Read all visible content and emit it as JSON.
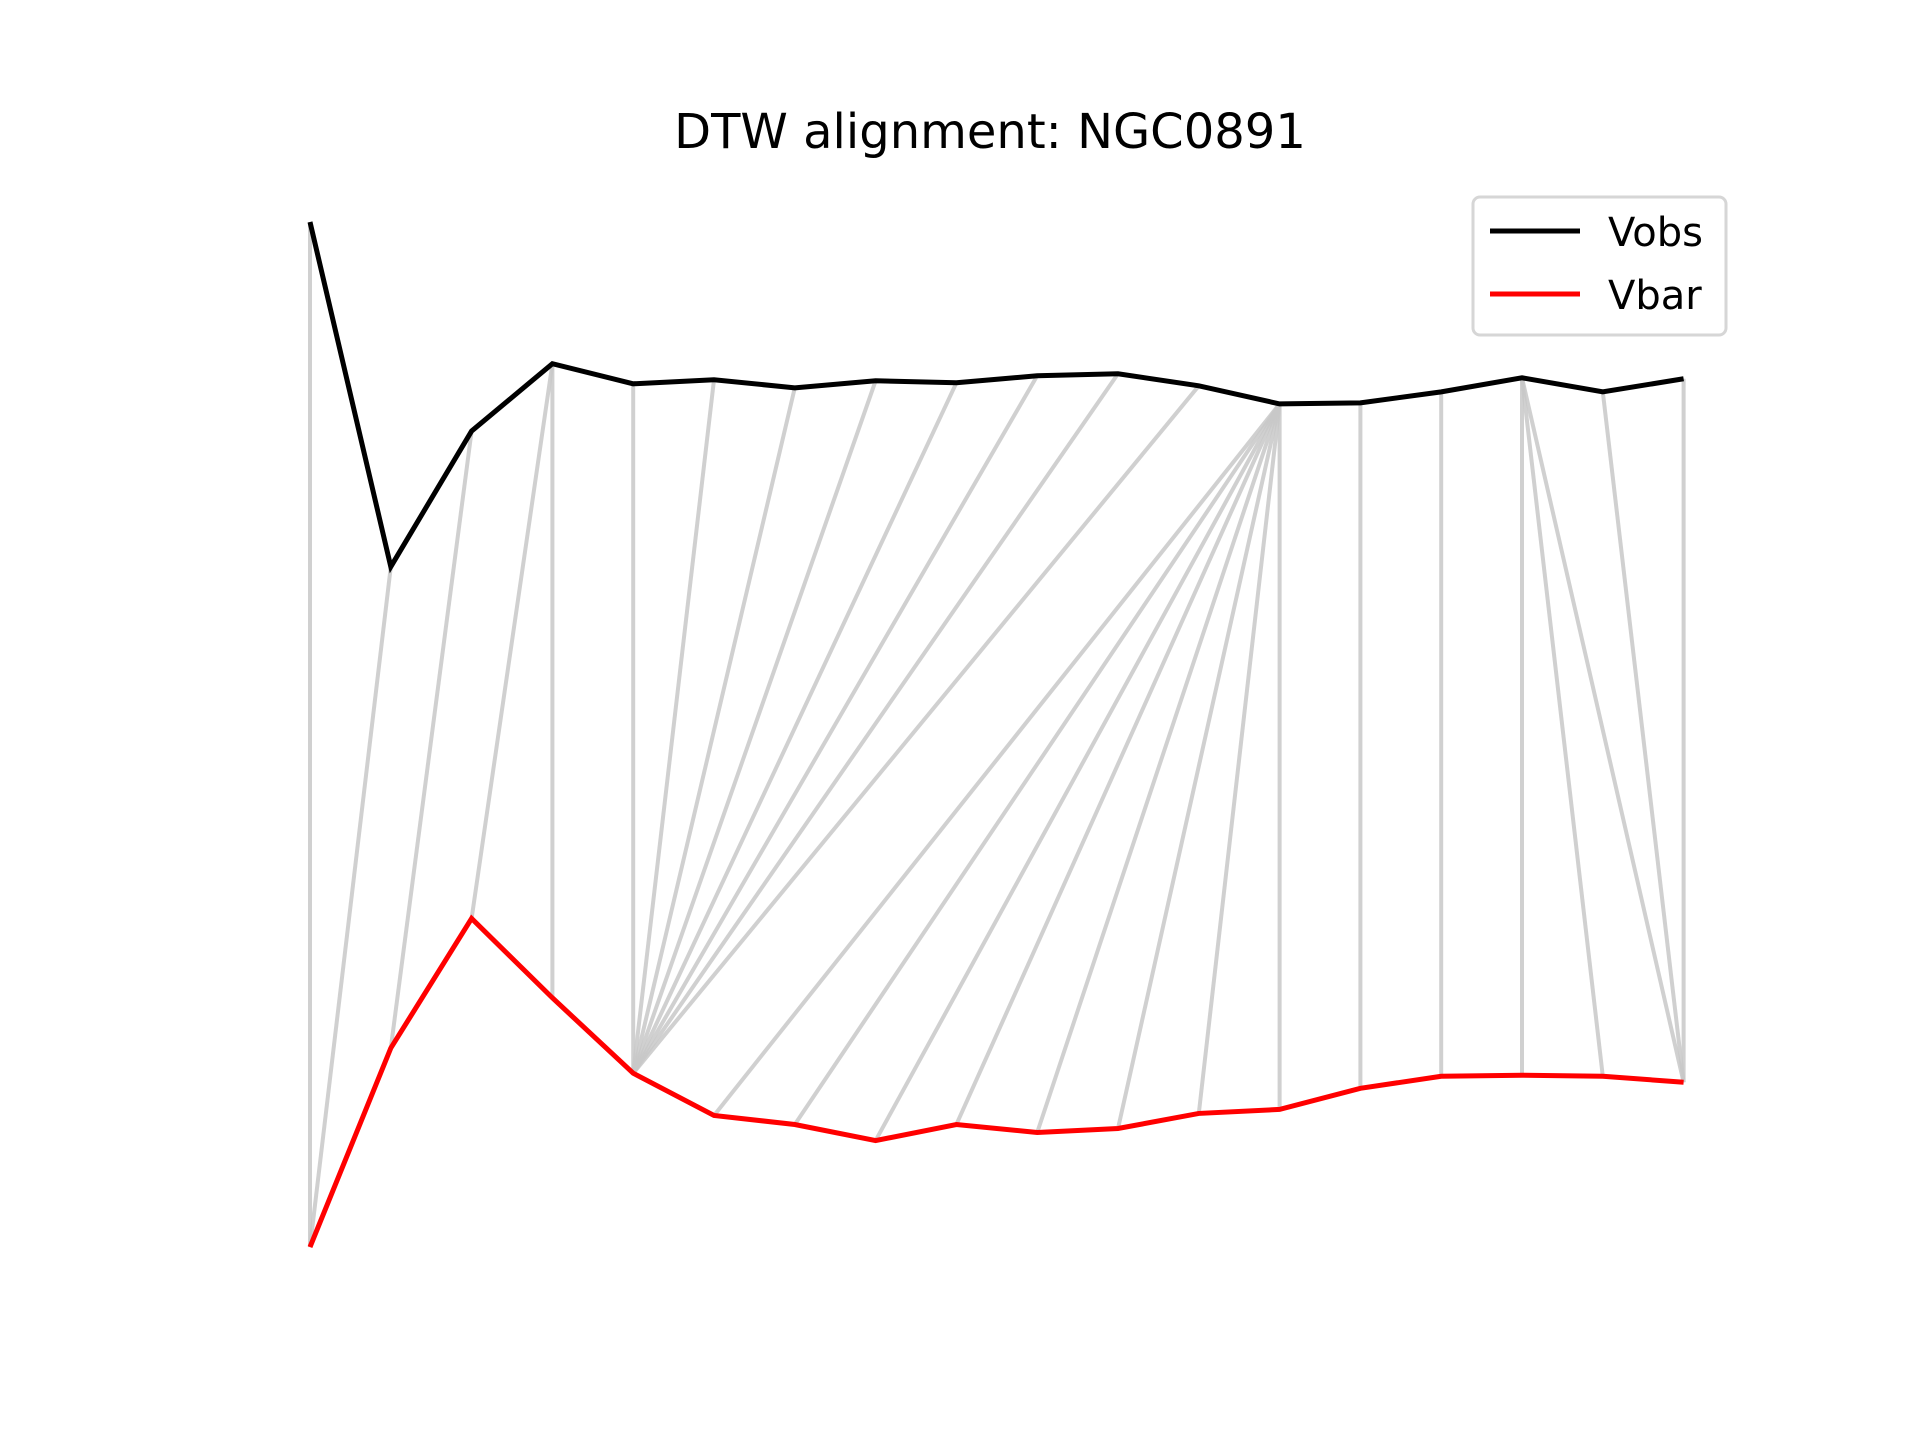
{
  "chart_data": {
    "type": "line",
    "title": "DTW alignment: NGC0891",
    "xlabel": "",
    "ylabel": "",
    "axes_visible": false,
    "grid": false,
    "legend_position": "top-right",
    "series": [
      {
        "name": "Vobs",
        "color": "#000000",
        "values": [
          0.0,
          0.343,
          0.208,
          0.141,
          0.161,
          0.157,
          0.165,
          0.158,
          0.16,
          0.153,
          0.151,
          0.163,
          0.181,
          0.18,
          0.169,
          0.155,
          0.169,
          0.156
        ]
      },
      {
        "name": "Vbar",
        "color": "#ff0000",
        "values": [
          1.02,
          0.822,
          0.693,
          0.772,
          0.847,
          0.889,
          0.898,
          0.914,
          0.898,
          0.906,
          0.902,
          0.887,
          0.883,
          0.862,
          0.85,
          0.849,
          0.85,
          0.856
        ]
      }
    ],
    "alignment": {
      "color": "#c8c8c8",
      "pairs": [
        [
          0,
          0
        ],
        [
          1,
          0
        ],
        [
          2,
          1
        ],
        [
          3,
          2
        ],
        [
          3,
          3
        ],
        [
          4,
          4
        ],
        [
          5,
          4
        ],
        [
          6,
          4
        ],
        [
          7,
          4
        ],
        [
          8,
          4
        ],
        [
          9,
          4
        ],
        [
          10,
          4
        ],
        [
          11,
          4
        ],
        [
          12,
          5
        ],
        [
          12,
          6
        ],
        [
          12,
          7
        ],
        [
          12,
          8
        ],
        [
          12,
          9
        ],
        [
          12,
          10
        ],
        [
          12,
          11
        ],
        [
          12,
          12
        ],
        [
          13,
          13
        ],
        [
          14,
          14
        ],
        [
          15,
          15
        ],
        [
          15,
          16
        ],
        [
          15,
          17
        ],
        [
          16,
          17
        ],
        [
          17,
          17
        ]
      ]
    }
  }
}
